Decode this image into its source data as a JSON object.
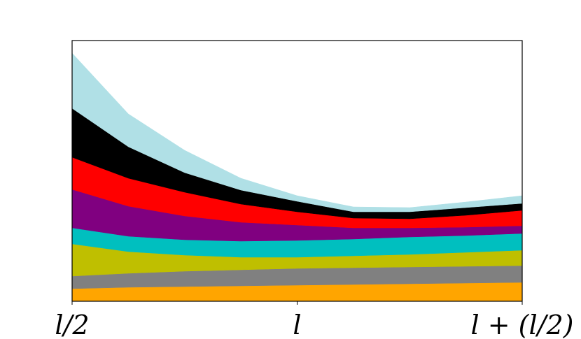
{
  "chart_data": {
    "type": "stackedarea",
    "x": [
      0.5,
      0.625,
      0.75,
      0.875,
      1.0,
      1.125,
      1.25,
      1.375,
      1.5
    ],
    "xlim": [
      0.5,
      1.5
    ],
    "xticks": [
      {
        "value": 0.5,
        "label": "l/2"
      },
      {
        "value": 1.0,
        "label": "l"
      },
      {
        "value": 1.5,
        "label": "l + (l/2)"
      }
    ],
    "ylim": [
      0,
      373
    ],
    "series": [
      {
        "color": "#ffa500",
        "values": [
          18,
          20,
          21,
          22,
          23,
          24,
          25,
          26,
          27
        ]
      },
      {
        "color": "#808080",
        "values": [
          18,
          20,
          22,
          23,
          24,
          24,
          24,
          24,
          24
        ]
      },
      {
        "color": "#bfbf00",
        "values": [
          46,
          31,
          23,
          18,
          16,
          17,
          18,
          20,
          22
        ]
      },
      {
        "color": "#00bfbf",
        "values": [
          23,
          22,
          22,
          23,
          24,
          24,
          25,
          24,
          24
        ]
      },
      {
        "color": "#800080",
        "values": [
          55,
          43,
          34,
          27,
          22,
          16,
          13,
          12,
          11
        ]
      },
      {
        "color": "#ff0000",
        "values": [
          46,
          40,
          34,
          26,
          19,
          14,
          13,
          17,
          22
        ]
      },
      {
        "color": "#000000",
        "values": [
          70,
          45,
          28,
          20,
          15,
          9,
          10,
          11,
          10
        ]
      },
      {
        "color": "#b0e0e6",
        "values": [
          79,
          47,
          32,
          17,
          8,
          7,
          6,
          8,
          11
        ]
      }
    ]
  }
}
